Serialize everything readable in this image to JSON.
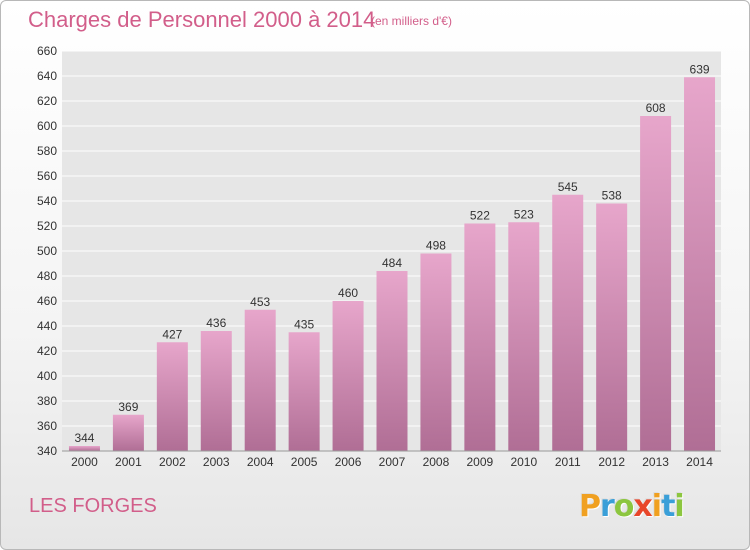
{
  "header": {
    "title": "Charges de Personnel 2000 à 2014",
    "subtitle": "(en milliers d'€)"
  },
  "footer": {
    "commune": "LES FORGES",
    "logo_letters": [
      "P",
      "r",
      "o",
      "x",
      "i",
      "t",
      "i"
    ],
    "logo_colors": [
      "#f0a020",
      "#3a9fd8",
      "#8cc63f",
      "#e8462a",
      "#f0a020",
      "#3a9fd8",
      "#8cc63f"
    ]
  },
  "chart_data": {
    "type": "bar",
    "categories": [
      "2000",
      "2001",
      "2002",
      "2003",
      "2004",
      "2005",
      "2006",
      "2007",
      "2008",
      "2009",
      "2010",
      "2011",
      "2012",
      "2013",
      "2014"
    ],
    "values": [
      344,
      369,
      427,
      436,
      453,
      435,
      460,
      484,
      498,
      522,
      523,
      545,
      538,
      608,
      639
    ],
    "ylim": [
      340,
      660
    ],
    "ytick_step": 20,
    "grid": true,
    "bar_color_top": "#e7a6cb",
    "bar_color_bottom": "#b06e95",
    "grid_color": "#ffffff",
    "plot_bg": "#e6e6e6"
  }
}
